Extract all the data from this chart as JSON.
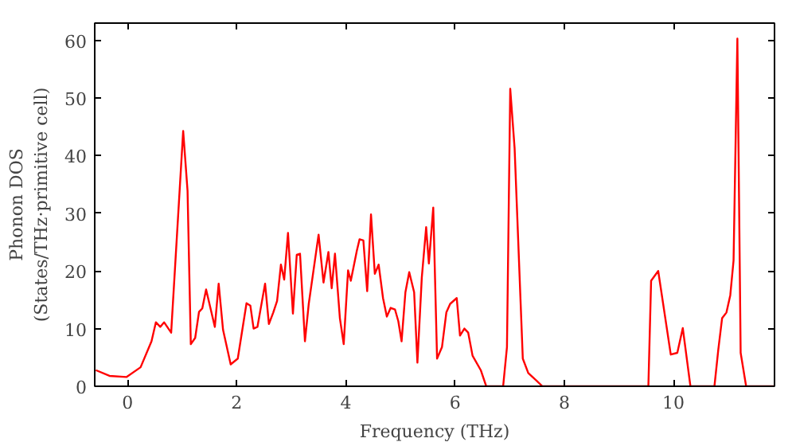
{
  "chart_data": {
    "type": "line",
    "xlabel": "Frequency (THz)",
    "ylabel": "Phonon DOS\n(States/THz·primitive cell)",
    "xlim": [
      -0.6,
      11.85
    ],
    "ylim": [
      0,
      63
    ],
    "xticks": [
      0,
      2,
      4,
      6,
      8,
      10
    ],
    "yticks": [
      0,
      10,
      20,
      30,
      40,
      50,
      60
    ],
    "grid": false,
    "marker": "none",
    "line_style": "solid",
    "series": [
      {
        "color": "#ff0000",
        "x": [
          -0.58,
          -0.33,
          -0.02,
          0.24,
          0.44,
          0.52,
          0.6,
          0.67,
          0.8,
          1.02,
          1.1,
          1.16,
          1.24,
          1.31,
          1.37,
          1.44,
          1.6,
          1.67,
          1.75,
          1.89,
          2.02,
          2.18,
          2.25,
          2.31,
          2.38,
          2.52,
          2.59,
          2.67,
          2.74,
          2.81,
          2.87,
          2.94,
          3.03,
          3.1,
          3.16,
          3.25,
          3.32,
          3.5,
          3.59,
          3.68,
          3.74,
          3.8,
          3.89,
          3.96,
          4.04,
          4.09,
          4.2,
          4.25,
          4.32,
          4.39,
          4.46,
          4.53,
          4.6,
          4.68,
          4.75,
          4.82,
          4.9,
          4.96,
          5.02,
          5.09,
          5.16,
          5.25,
          5.31,
          5.39,
          5.47,
          5.52,
          5.6,
          5.67,
          5.76,
          5.84,
          5.91,
          6.03,
          6.09,
          6.17,
          6.24,
          6.32,
          6.47,
          6.57,
          6.88,
          6.95,
          7.01,
          7.09,
          7.24,
          7.34,
          7.49,
          7.6,
          9.54,
          9.59,
          9.72,
          9.95,
          10.07,
          10.17,
          10.31,
          10.75,
          10.82,
          10.89,
          10.97,
          11.04,
          11.1,
          11.17,
          11.23,
          11.33,
          11.84
        ],
        "values": [
          2.8,
          1.8,
          1.6,
          3.3,
          7.8,
          11.1,
          10.3,
          11.1,
          9.3,
          44.3,
          33.9,
          7.3,
          8.4,
          12.9,
          13.5,
          16.8,
          10.3,
          17.8,
          9.8,
          3.8,
          4.8,
          14.4,
          14,
          10,
          10.3,
          17.8,
          10.8,
          12.8,
          14.8,
          21.1,
          18.5,
          26.6,
          12.6,
          22.8,
          23,
          7.8,
          14.3,
          26.3,
          18,
          23.3,
          17,
          23,
          11.8,
          7.3,
          20.1,
          18.3,
          23.5,
          25.5,
          25.3,
          16.5,
          29.8,
          19.5,
          21.1,
          15.3,
          12.1,
          13.6,
          13.3,
          11.3,
          7.8,
          16.3,
          19.8,
          16.3,
          4.1,
          18.8,
          27.6,
          21.3,
          31,
          4.8,
          6.8,
          12.8,
          14.3,
          15.3,
          8.8,
          10,
          9.3,
          5.3,
          2.8,
          0,
          0,
          6.8,
          51.6,
          41.3,
          4.8,
          2.3,
          1,
          0,
          0,
          18.3,
          20,
          5.5,
          5.8,
          10.1,
          0,
          0,
          6.3,
          11.8,
          12.8,
          15.8,
          21.8,
          60.3,
          5.8,
          0,
          0
        ]
      }
    ]
  }
}
